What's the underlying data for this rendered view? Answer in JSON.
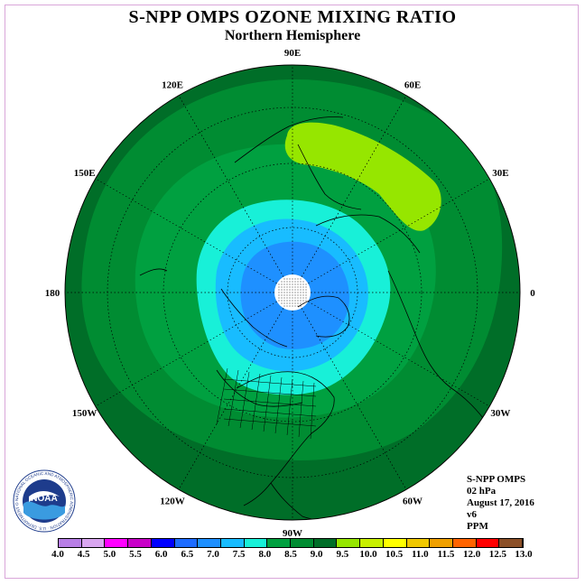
{
  "title": "S-NPP OMPS OZONE MIXING RATIO",
  "subtitle": "Northern Hemisphere",
  "longitude_labels": [
    {
      "text": "90E",
      "deg": 90
    },
    {
      "text": "60E",
      "deg": 60
    },
    {
      "text": "30E",
      "deg": 30
    },
    {
      "text": "0",
      "deg": 0
    },
    {
      "text": "30W",
      "deg": -30
    },
    {
      "text": "60W",
      "deg": -60
    },
    {
      "text": "90W",
      "deg": -90
    },
    {
      "text": "120W",
      "deg": -120
    },
    {
      "text": "150W",
      "deg": -150
    },
    {
      "text": "180",
      "deg": 180
    },
    {
      "text": "150E",
      "deg": 150
    },
    {
      "text": "120E",
      "deg": 120
    }
  ],
  "info": {
    "instrument": "S-NPP OMPS",
    "level": "02 hPa",
    "date": "August 17, 2016",
    "version": "v6",
    "units": "PPM"
  },
  "logo": {
    "text": "NOAA",
    "ring_text": "NATIONAL OCEANIC AND ATMOSPHERIC ADMINISTRATION · U.S. DEPARTMENT OF COMMERCE"
  },
  "colorbar": {
    "ticks": [
      "4.0",
      "4.5",
      "5.0",
      "5.5",
      "6.0",
      "6.5",
      "7.0",
      "7.5",
      "8.0",
      "8.5",
      "9.0",
      "9.5",
      "10.0",
      "10.5",
      "11.0",
      "11.5",
      "12.0",
      "12.5",
      "13.0"
    ],
    "colors": [
      "#b87ee6",
      "#d9a6f0",
      "#ff00ff",
      "#c800c8",
      "#0000ff",
      "#1e6cff",
      "#1e90ff",
      "#18bcff",
      "#18f0d8",
      "#00a040",
      "#008c32",
      "#006e28",
      "#96e600",
      "#c8f000",
      "#ffff00",
      "#f0c800",
      "#f0a000",
      "#ff6400",
      "#ff0000",
      "#8c5028"
    ]
  },
  "map": {
    "projection": "north polar stereographic",
    "center_lat": 90,
    "field_colors": {
      "outer": "#006e28",
      "mid": "#008c32",
      "inner": "#00a040",
      "ring_8": "#18f0d8",
      "ring_75": "#18bcff",
      "ring_7": "#1e90ff",
      "high": "#96e600",
      "pole": "#ffffff"
    }
  }
}
